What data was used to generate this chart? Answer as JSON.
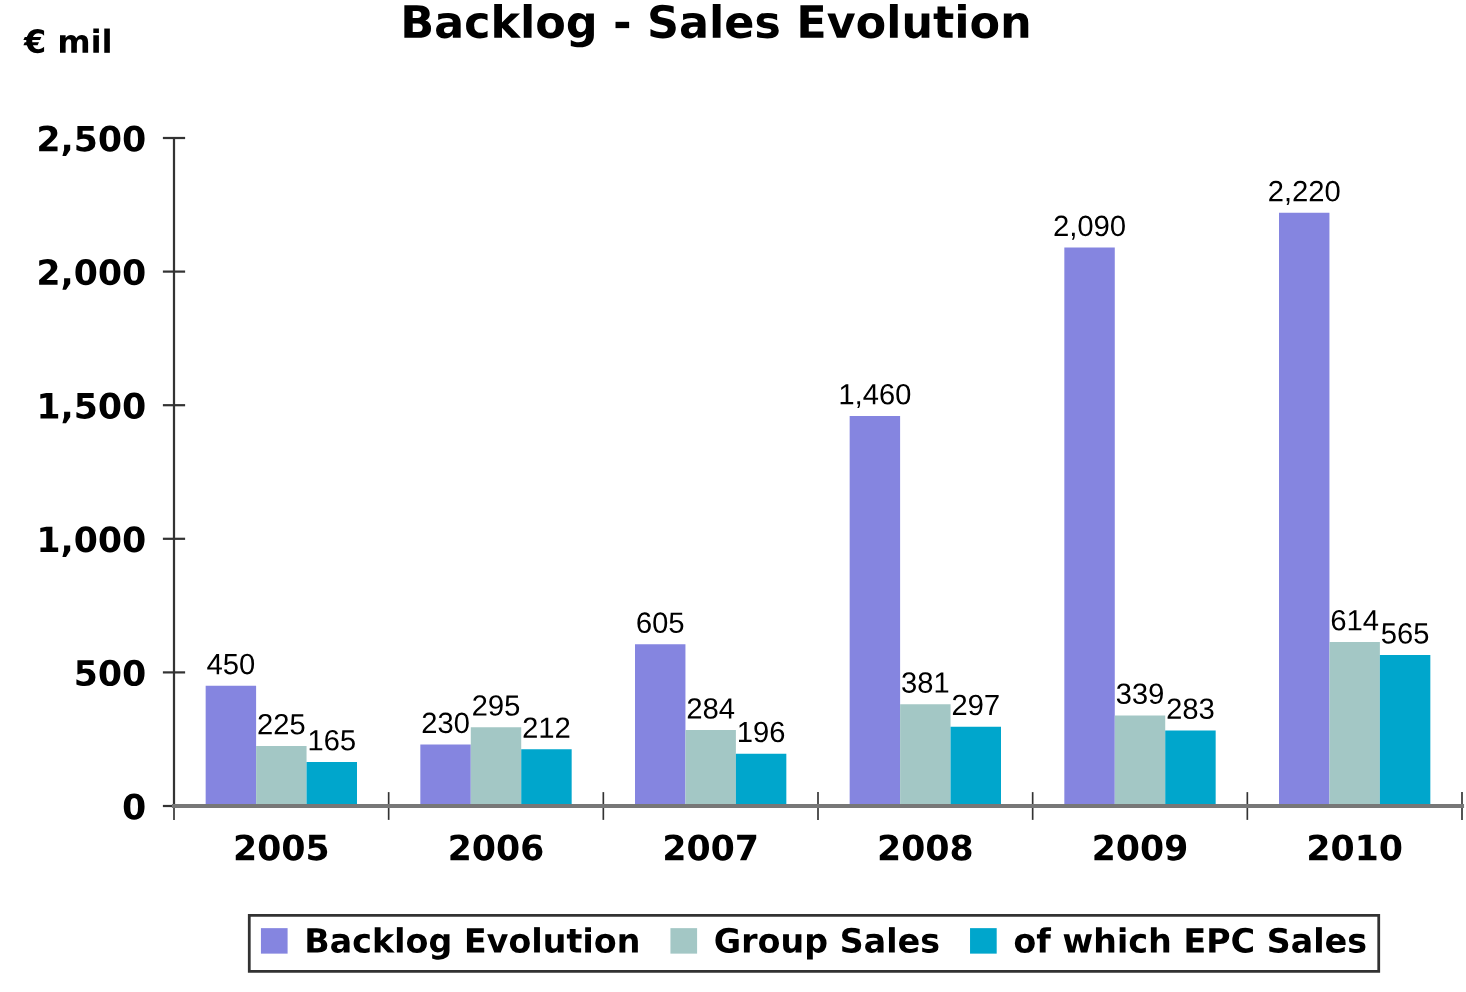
{
  "chart_data": {
    "type": "bar",
    "title": "Backlog - Sales Evolution",
    "ylabel": "€ mil",
    "categories": [
      "2005",
      "2006",
      "2007",
      "2008",
      "2009",
      "2010"
    ],
    "series": [
      {
        "name": "Backlog Evolution",
        "color": "#8585e0",
        "values": [
          450,
          230,
          605,
          1460,
          2090,
          2220
        ],
        "value_labels": [
          "450",
          "230",
          "605",
          "1,460",
          "2,090",
          "2,220"
        ]
      },
      {
        "name": "Group Sales",
        "color": "#a3c7c5",
        "values": [
          225,
          295,
          284,
          381,
          339,
          614
        ],
        "value_labels": [
          "225",
          "295",
          "284",
          "381",
          "339",
          "614"
        ]
      },
      {
        "name": "of which EPC Sales",
        "color": "#00a6cc",
        "values": [
          165,
          212,
          196,
          297,
          283,
          565
        ],
        "value_labels": [
          "165",
          "212",
          "196",
          "297",
          "283",
          "565"
        ]
      }
    ],
    "ylim": [
      0,
      2500
    ],
    "yticks": [
      0,
      500,
      {
        "value": 1000,
        "label": "1,000"
      },
      {
        "value": 1500,
        "label": "1,500"
      },
      {
        "value": 2000,
        "label": "2,000"
      },
      {
        "value": 2500,
        "label": "2,500"
      }
    ],
    "legend": "bottom"
  }
}
